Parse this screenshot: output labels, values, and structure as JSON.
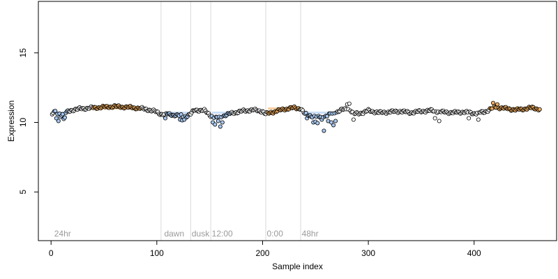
{
  "chart_data": {
    "type": "scatter",
    "title": "",
    "xlabel": "Sample index",
    "ylabel": "Expression",
    "xlim": [
      -12,
      478
    ],
    "ylim": [
      1.5,
      18.7
    ],
    "x_ticks": [
      0,
      100,
      200,
      300,
      400
    ],
    "y_ticks": [
      5,
      10,
      15
    ],
    "grid": false,
    "legend": "none",
    "colors": {
      "point_stroke": "#000000",
      "background_fill": "#ffffff",
      "blue_fill": "#a8c8f0",
      "orange_fill": "#f4b060",
      "vline": "#d8d8d8",
      "annotation": "#9a9a9a"
    },
    "vlines": [
      104,
      132,
      151,
      203,
      236
    ],
    "annotations": [
      {
        "x": 3,
        "label": "24hr"
      },
      {
        "x": 107,
        "label": "dawn"
      },
      {
        "x": 133,
        "label": "dusk"
      },
      {
        "x": 152,
        "label": "12:00"
      },
      {
        "x": 204,
        "label": "0:00"
      },
      {
        "x": 237,
        "label": "48hr"
      }
    ],
    "annotation_y": 2.0,
    "control_points": [
      [
        1,
        10.5
      ],
      [
        3,
        10.8
      ],
      [
        6,
        10.65
      ],
      [
        10,
        10.6
      ],
      [
        14,
        10.7
      ],
      [
        20,
        10.9
      ],
      [
        30,
        11.0
      ],
      [
        40,
        11.05
      ],
      [
        50,
        11.1
      ],
      [
        60,
        11.15
      ],
      [
        70,
        11.1
      ],
      [
        80,
        11.05
      ],
      [
        90,
        10.95
      ],
      [
        100,
        10.75
      ],
      [
        104,
        10.6
      ],
      [
        110,
        10.6
      ],
      [
        120,
        10.5
      ],
      [
        128,
        10.45
      ],
      [
        132,
        10.6
      ],
      [
        136,
        10.9
      ],
      [
        145,
        10.85
      ],
      [
        151,
        10.5
      ],
      [
        156,
        10.3
      ],
      [
        160,
        10.4
      ],
      [
        170,
        10.65
      ],
      [
        180,
        10.8
      ],
      [
        190,
        10.9
      ],
      [
        200,
        10.8
      ],
      [
        203,
        10.6
      ],
      [
        210,
        10.75
      ],
      [
        220,
        10.95
      ],
      [
        230,
        11.05
      ],
      [
        236,
        11.0
      ],
      [
        240,
        10.6
      ],
      [
        250,
        10.4
      ],
      [
        255,
        10.4
      ],
      [
        260,
        10.45
      ],
      [
        265,
        10.6
      ],
      [
        275,
        10.9
      ],
      [
        282,
        11.0
      ],
      [
        286,
        10.6
      ],
      [
        295,
        10.7
      ],
      [
        300,
        10.85
      ],
      [
        310,
        10.7
      ],
      [
        320,
        10.75
      ],
      [
        330,
        10.8
      ],
      [
        340,
        10.7
      ],
      [
        350,
        10.8
      ],
      [
        360,
        10.85
      ],
      [
        370,
        10.75
      ],
      [
        380,
        10.7
      ],
      [
        390,
        10.75
      ],
      [
        400,
        10.65
      ],
      [
        410,
        10.75
      ],
      [
        415,
        10.95
      ],
      [
        420,
        11.1
      ],
      [
        430,
        11.0
      ],
      [
        440,
        10.9
      ],
      [
        450,
        11.0
      ],
      [
        455,
        11.05
      ],
      [
        462,
        10.95
      ]
    ],
    "outliers": [
      [
        5,
        10.3
      ],
      [
        7,
        10.1
      ],
      [
        9,
        10.4
      ],
      [
        12,
        10.25
      ],
      [
        13,
        10.35
      ],
      [
        108,
        10.3
      ],
      [
        122,
        10.2
      ],
      [
        124,
        10.15
      ],
      [
        126,
        10.2
      ],
      [
        153,
        10.0
      ],
      [
        155,
        9.85
      ],
      [
        158,
        10.1
      ],
      [
        160,
        9.7
      ],
      [
        162,
        10.0
      ],
      [
        242,
        10.3
      ],
      [
        248,
        10.0
      ],
      [
        250,
        10.05
      ],
      [
        252,
        9.95
      ],
      [
        256,
        10.2
      ],
      [
        258,
        9.4
      ],
      [
        262,
        10.1
      ],
      [
        265,
        10.0
      ],
      [
        267,
        9.8
      ],
      [
        269,
        10.1
      ],
      [
        280,
        11.3
      ],
      [
        282,
        11.35
      ],
      [
        286,
        10.2
      ],
      [
        363,
        10.3
      ],
      [
        367,
        10.1
      ],
      [
        395,
        10.3
      ],
      [
        404,
        10.2
      ],
      [
        418,
        11.4
      ],
      [
        422,
        11.3
      ]
    ],
    "series": [
      {
        "fill": "blue",
        "x_ranges": [
          [
            3,
            16
          ],
          [
            108,
            130
          ],
          [
            152,
            170
          ],
          [
            240,
            270
          ]
        ],
        "mean": 10.7
      },
      {
        "fill": "orange",
        "x_ranges": [
          [
            40,
            85
          ],
          [
            205,
            235
          ],
          [
            415,
            462
          ]
        ],
        "mean": 11.0
      }
    ],
    "n_points": 462
  }
}
